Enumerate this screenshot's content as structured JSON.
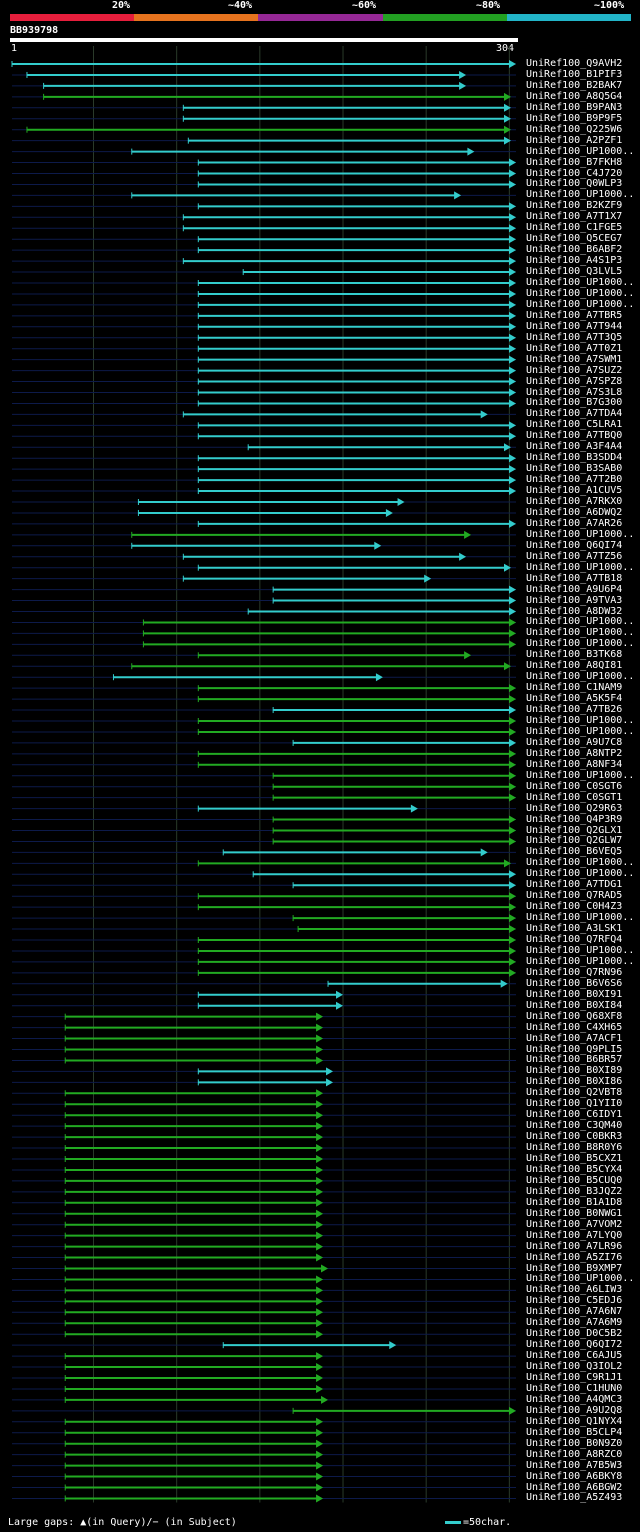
{
  "legend": {
    "segments": [
      {
        "color": "#e61e3c",
        "from": 0,
        "to": 20
      },
      {
        "color": "#e6731e",
        "from": 20,
        "to": 40
      },
      {
        "color": "#962896",
        "from": 40,
        "to": 60
      },
      {
        "color": "#22a022",
        "from": 60,
        "to": 80
      },
      {
        "color": "#22b4c8",
        "from": 80,
        "to": 100
      }
    ],
    "ticks": [
      "20%",
      "~40%",
      "~60%",
      "~80%",
      "~100%"
    ]
  },
  "query": {
    "name": "BB939798",
    "start": "1",
    "end": "304",
    "length": 304
  },
  "footer": {
    "gaps_text": "Large gaps: ▲(in Query)/− (in Subject)",
    "scale_text": "=50char."
  },
  "hits": [
    {
      "label": "UniRef100_Q9AVH2",
      "s": 1,
      "e": 304,
      "c": "cyan"
    },
    {
      "label": "UniRef100_B1PIF3",
      "s": 10,
      "e": 274,
      "c": "cyan"
    },
    {
      "label": "UniRef100_B2BAK7",
      "s": 20,
      "e": 274,
      "c": "cyan"
    },
    {
      "label": "UniRef100_A8Q5G4",
      "s": 20,
      "e": 301,
      "c": "green"
    },
    {
      "label": "UniRef100_B9PAN3",
      "s": 104,
      "e": 301,
      "c": "cyan"
    },
    {
      "label": "UniRef100_B9P9F5",
      "s": 104,
      "e": 301,
      "c": "cyan"
    },
    {
      "label": "UniRef100_Q225W6",
      "s": 10,
      "e": 301,
      "c": "green"
    },
    {
      "label": "UniRef100_A2PZF1",
      "s": 107,
      "e": 301,
      "c": "cyan"
    },
    {
      "label": "UniRef100_UP1000..",
      "s": 73,
      "e": 279,
      "c": "cyan"
    },
    {
      "label": "UniRef100_B7FKH8",
      "s": 113,
      "e": 304,
      "c": "cyan"
    },
    {
      "label": "UniRef100_C4J720",
      "s": 113,
      "e": 304,
      "c": "cyan"
    },
    {
      "label": "UniRef100_Q0WLP3",
      "s": 113,
      "e": 304,
      "c": "cyan"
    },
    {
      "label": "UniRef100_UP1000..",
      "s": 73,
      "e": 271,
      "c": "cyan"
    },
    {
      "label": "UniRef100_B2KZF9",
      "s": 113,
      "e": 304,
      "c": "cyan"
    },
    {
      "label": "UniRef100_A7T1X7",
      "s": 104,
      "e": 304,
      "c": "cyan"
    },
    {
      "label": "UniRef100_C1FGE5",
      "s": 104,
      "e": 304,
      "c": "cyan"
    },
    {
      "label": "UniRef100_Q5CEG7",
      "s": 113,
      "e": 304,
      "c": "cyan"
    },
    {
      "label": "UniRef100_B6ABF2",
      "s": 113,
      "e": 304,
      "c": "cyan"
    },
    {
      "label": "UniRef100_A4S1P3",
      "s": 104,
      "e": 304,
      "c": "cyan"
    },
    {
      "label": "UniRef100_Q3LVL5",
      "s": 140,
      "e": 304,
      "c": "cyan"
    },
    {
      "label": "UniRef100_UP1000..",
      "s": 113,
      "e": 304,
      "c": "cyan"
    },
    {
      "label": "UniRef100_UP1000..",
      "s": 113,
      "e": 304,
      "c": "cyan"
    },
    {
      "label": "UniRef100_UP1000..",
      "s": 113,
      "e": 304,
      "c": "cyan"
    },
    {
      "label": "UniRef100_A7TBR5",
      "s": 113,
      "e": 304,
      "c": "cyan"
    },
    {
      "label": "UniRef100_A7T944",
      "s": 113,
      "e": 304,
      "c": "cyan"
    },
    {
      "label": "UniRef100_A7T3Q5",
      "s": 113,
      "e": 304,
      "c": "cyan"
    },
    {
      "label": "UniRef100_A7T0Z1",
      "s": 113,
      "e": 304,
      "c": "cyan"
    },
    {
      "label": "UniRef100_A7SWM1",
      "s": 113,
      "e": 304,
      "c": "cyan"
    },
    {
      "label": "UniRef100_A7SUZ2",
      "s": 113,
      "e": 304,
      "c": "cyan"
    },
    {
      "label": "UniRef100_A7SPZ8",
      "s": 113,
      "e": 304,
      "c": "cyan"
    },
    {
      "label": "UniRef100_A7S3L8",
      "s": 113,
      "e": 304,
      "c": "cyan"
    },
    {
      "label": "UniRef100_B7G300",
      "s": 113,
      "e": 304,
      "c": "cyan"
    },
    {
      "label": "UniRef100_A7TDA4",
      "s": 104,
      "e": 287,
      "c": "cyan"
    },
    {
      "label": "UniRef100_C5LRA1",
      "s": 113,
      "e": 304,
      "c": "cyan"
    },
    {
      "label": "UniRef100_A7TBQ0",
      "s": 113,
      "e": 304,
      "c": "cyan"
    },
    {
      "label": "UniRef100_A3F4A4",
      "s": 143,
      "e": 301,
      "c": "cyan"
    },
    {
      "label": "UniRef100_B3SDD4",
      "s": 113,
      "e": 304,
      "c": "cyan"
    },
    {
      "label": "UniRef100_B3SAB0",
      "s": 113,
      "e": 304,
      "c": "cyan"
    },
    {
      "label": "UniRef100_A7T2B0",
      "s": 113,
      "e": 304,
      "c": "cyan"
    },
    {
      "label": "UniRef100_A1CUV5",
      "s": 113,
      "e": 304,
      "c": "cyan"
    },
    {
      "label": "UniRef100_A7RKX0",
      "s": 77,
      "e": 237,
      "c": "cyan"
    },
    {
      "label": "UniRef100_A6DWQ2",
      "s": 77,
      "e": 230,
      "c": "cyan"
    },
    {
      "label": "UniRef100_A7AR26",
      "s": 113,
      "e": 304,
      "c": "cyan"
    },
    {
      "label": "UniRef100_UP1000..",
      "s": 73,
      "e": 277,
      "c": "green"
    },
    {
      "label": "UniRef100_Q6QI74",
      "s": 73,
      "e": 223,
      "c": "cyan"
    },
    {
      "label": "UniRef100_A7TZ56",
      "s": 104,
      "e": 274,
      "c": "cyan"
    },
    {
      "label": "UniRef100_UP1000..",
      "s": 113,
      "e": 301,
      "c": "cyan"
    },
    {
      "label": "UniRef100_A7TB18",
      "s": 104,
      "e": 253,
      "c": "cyan"
    },
    {
      "label": "UniRef100_A9U6P4",
      "s": 158,
      "e": 304,
      "c": "cyan"
    },
    {
      "label": "UniRef100_A9TVA3",
      "s": 158,
      "e": 304,
      "c": "cyan"
    },
    {
      "label": "UniRef100_A8DW32",
      "s": 143,
      "e": 304,
      "c": "cyan"
    },
    {
      "label": "UniRef100_UP1000..",
      "s": 80,
      "e": 304,
      "c": "green"
    },
    {
      "label": "UniRef100_UP1000..",
      "s": 80,
      "e": 304,
      "c": "green"
    },
    {
      "label": "UniRef100_UP1000..",
      "s": 80,
      "e": 304,
      "c": "green"
    },
    {
      "label": "UniRef100_B3TK68",
      "s": 113,
      "e": 277,
      "c": "green"
    },
    {
      "label": "UniRef100_A8QI81",
      "s": 73,
      "e": 301,
      "c": "green"
    },
    {
      "label": "UniRef100_UP1000..",
      "s": 62,
      "e": 224,
      "c": "cyan"
    },
    {
      "label": "UniRef100_C1NAM9",
      "s": 113,
      "e": 304,
      "c": "green"
    },
    {
      "label": "UniRef100_A5K5F4",
      "s": 113,
      "e": 304,
      "c": "green"
    },
    {
      "label": "UniRef100_A7TB26",
      "s": 158,
      "e": 304,
      "c": "cyan"
    },
    {
      "label": "UniRef100_UP1000..",
      "s": 113,
      "e": 304,
      "c": "green"
    },
    {
      "label": "UniRef100_UP1000..",
      "s": 113,
      "e": 304,
      "c": "green"
    },
    {
      "label": "UniRef100_A9U7C8",
      "s": 170,
      "e": 304,
      "c": "cyan"
    },
    {
      "label": "UniRef100_A8NTP2",
      "s": 113,
      "e": 304,
      "c": "green"
    },
    {
      "label": "UniRef100_A8NF34",
      "s": 113,
      "e": 304,
      "c": "green"
    },
    {
      "label": "UniRef100_UP1000..",
      "s": 158,
      "e": 304,
      "c": "green"
    },
    {
      "label": "UniRef100_C0SGT6",
      "s": 158,
      "e": 304,
      "c": "green"
    },
    {
      "label": "UniRef100_C0SGT1",
      "s": 158,
      "e": 304,
      "c": "green"
    },
    {
      "label": "UniRef100_Q29R63",
      "s": 113,
      "e": 245,
      "c": "cyan"
    },
    {
      "label": "UniRef100_Q4P3R9",
      "s": 158,
      "e": 304,
      "c": "green"
    },
    {
      "label": "UniRef100_Q2GLX1",
      "s": 158,
      "e": 304,
      "c": "green"
    },
    {
      "label": "UniRef100_Q2GLW7",
      "s": 158,
      "e": 304,
      "c": "green"
    },
    {
      "label": "UniRef100_B6VEQ5",
      "s": 128,
      "e": 287,
      "c": "cyan"
    },
    {
      "label": "UniRef100_UP1000..",
      "s": 113,
      "e": 301,
      "c": "green"
    },
    {
      "label": "UniRef100_UP1000..",
      "s": 146,
      "e": 304,
      "c": "cyan"
    },
    {
      "label": "UniRef100_A7TDG1",
      "s": 170,
      "e": 304,
      "c": "cyan"
    },
    {
      "label": "UniRef100_Q7RAD5",
      "s": 113,
      "e": 304,
      "c": "green"
    },
    {
      "label": "UniRef100_C0H4Z3",
      "s": 113,
      "e": 304,
      "c": "green"
    },
    {
      "label": "UniRef100_UP1000..",
      "s": 170,
      "e": 304,
      "c": "green"
    },
    {
      "label": "UniRef100_A3LSK1",
      "s": 173,
      "e": 304,
      "c": "green"
    },
    {
      "label": "UniRef100_Q7RFQ4",
      "s": 113,
      "e": 304,
      "c": "green"
    },
    {
      "label": "UniRef100_UP1000..",
      "s": 113,
      "e": 304,
      "c": "green"
    },
    {
      "label": "UniRef100_UP1000..",
      "s": 113,
      "e": 304,
      "c": "green"
    },
    {
      "label": "UniRef100_Q7RN96",
      "s": 113,
      "e": 304,
      "c": "green"
    },
    {
      "label": "UniRef100_B6V6S6",
      "s": 191,
      "e": 299,
      "c": "cyan"
    },
    {
      "label": "UniRef100_B0XI91",
      "s": 113,
      "e": 200,
      "c": "cyan"
    },
    {
      "label": "UniRef100_B0XI84",
      "s": 113,
      "e": 200,
      "c": "cyan"
    },
    {
      "label": "UniRef100_Q68XF8",
      "s": 33,
      "e": 188,
      "c": "green"
    },
    {
      "label": "UniRef100_C4XH65",
      "s": 33,
      "e": 188,
      "c": "green"
    },
    {
      "label": "UniRef100_A7ACF1",
      "s": 33,
      "e": 188,
      "c": "green"
    },
    {
      "label": "UniRef100_Q9PLI5",
      "s": 33,
      "e": 188,
      "c": "green"
    },
    {
      "label": "UniRef100_B6BR57",
      "s": 33,
      "e": 188,
      "c": "green"
    },
    {
      "label": "UniRef100_B0XI89",
      "s": 113,
      "e": 194,
      "c": "cyan"
    },
    {
      "label": "UniRef100_B0XI86",
      "s": 113,
      "e": 194,
      "c": "cyan"
    },
    {
      "label": "UniRef100_Q2VBT8",
      "s": 33,
      "e": 188,
      "c": "green"
    },
    {
      "label": "UniRef100_Q1YII0",
      "s": 33,
      "e": 188,
      "c": "green"
    },
    {
      "label": "UniRef100_C6IDY1",
      "s": 33,
      "e": 188,
      "c": "green"
    },
    {
      "label": "UniRef100_C3QM40",
      "s": 33,
      "e": 188,
      "c": "green"
    },
    {
      "label": "UniRef100_C0BKR3",
      "s": 33,
      "e": 188,
      "c": "green"
    },
    {
      "label": "UniRef100_B8R0Y6",
      "s": 33,
      "e": 188,
      "c": "green"
    },
    {
      "label": "UniRef100_B5CXZ1",
      "s": 33,
      "e": 188,
      "c": "green"
    },
    {
      "label": "UniRef100_B5CYX4",
      "s": 33,
      "e": 188,
      "c": "green"
    },
    {
      "label": "UniRef100_B5CUQ0",
      "s": 33,
      "e": 188,
      "c": "green"
    },
    {
      "label": "UniRef100_B3JQZ2",
      "s": 33,
      "e": 188,
      "c": "green"
    },
    {
      "label": "UniRef100_B1A1D8",
      "s": 33,
      "e": 188,
      "c": "green"
    },
    {
      "label": "UniRef100_B0NWG1",
      "s": 33,
      "e": 188,
      "c": "green"
    },
    {
      "label": "UniRef100_A7VOM2",
      "s": 33,
      "e": 188,
      "c": "green"
    },
    {
      "label": "UniRef100_A7LYQ0",
      "s": 33,
      "e": 188,
      "c": "green"
    },
    {
      "label": "UniRef100_A7LR96",
      "s": 33,
      "e": 188,
      "c": "green"
    },
    {
      "label": "UniRef100_A5ZI76",
      "s": 33,
      "e": 188,
      "c": "green"
    },
    {
      "label": "UniRef100_B9XMP7",
      "s": 33,
      "e": 191,
      "c": "green"
    },
    {
      "label": "UniRef100_UP1000..",
      "s": 33,
      "e": 188,
      "c": "green"
    },
    {
      "label": "UniRef100_A6LIW3",
      "s": 33,
      "e": 188,
      "c": "green"
    },
    {
      "label": "UniRef100_C5EDJ6",
      "s": 33,
      "e": 188,
      "c": "green"
    },
    {
      "label": "UniRef100_A7A6N7",
      "s": 33,
      "e": 188,
      "c": "green"
    },
    {
      "label": "UniRef100_A7A6M9",
      "s": 33,
      "e": 188,
      "c": "green"
    },
    {
      "label": "UniRef100_D0C5B2",
      "s": 33,
      "e": 188,
      "c": "green"
    },
    {
      "label": "UniRef100_Q6QI72",
      "s": 128,
      "e": 232,
      "c": "cyan"
    },
    {
      "label": "UniRef100_C6AJU5",
      "s": 33,
      "e": 188,
      "c": "green"
    },
    {
      "label": "UniRef100_Q3IOL2",
      "s": 33,
      "e": 188,
      "c": "green"
    },
    {
      "label": "UniRef100_C9R1J1",
      "s": 33,
      "e": 188,
      "c": "green"
    },
    {
      "label": "UniRef100_C1HUN0",
      "s": 33,
      "e": 188,
      "c": "green"
    },
    {
      "label": "UniRef100_A4QMC3",
      "s": 33,
      "e": 191,
      "c": "green"
    },
    {
      "label": "UniRef100_A9U2Q8",
      "s": 170,
      "e": 304,
      "c": "green"
    },
    {
      "label": "UniRef100_Q1NYX4",
      "s": 33,
      "e": 188,
      "c": "green"
    },
    {
      "label": "UniRef100_B5CLP4",
      "s": 33,
      "e": 188,
      "c": "green"
    },
    {
      "label": "UniRef100_B0N9Z0",
      "s": 33,
      "e": 188,
      "c": "green"
    },
    {
      "label": "UniRef100_A8RZC0",
      "s": 33,
      "e": 188,
      "c": "green"
    },
    {
      "label": "UniRef100_A7B5W3",
      "s": 33,
      "e": 188,
      "c": "green"
    },
    {
      "label": "UniRef100_A6BKY8",
      "s": 33,
      "e": 188,
      "c": "green"
    },
    {
      "label": "UniRef100_A6BGW2",
      "s": 33,
      "e": 188,
      "c": "green"
    },
    {
      "label": "UniRef100_A5Z493",
      "s": 33,
      "e": 188,
      "c": "green"
    }
  ]
}
